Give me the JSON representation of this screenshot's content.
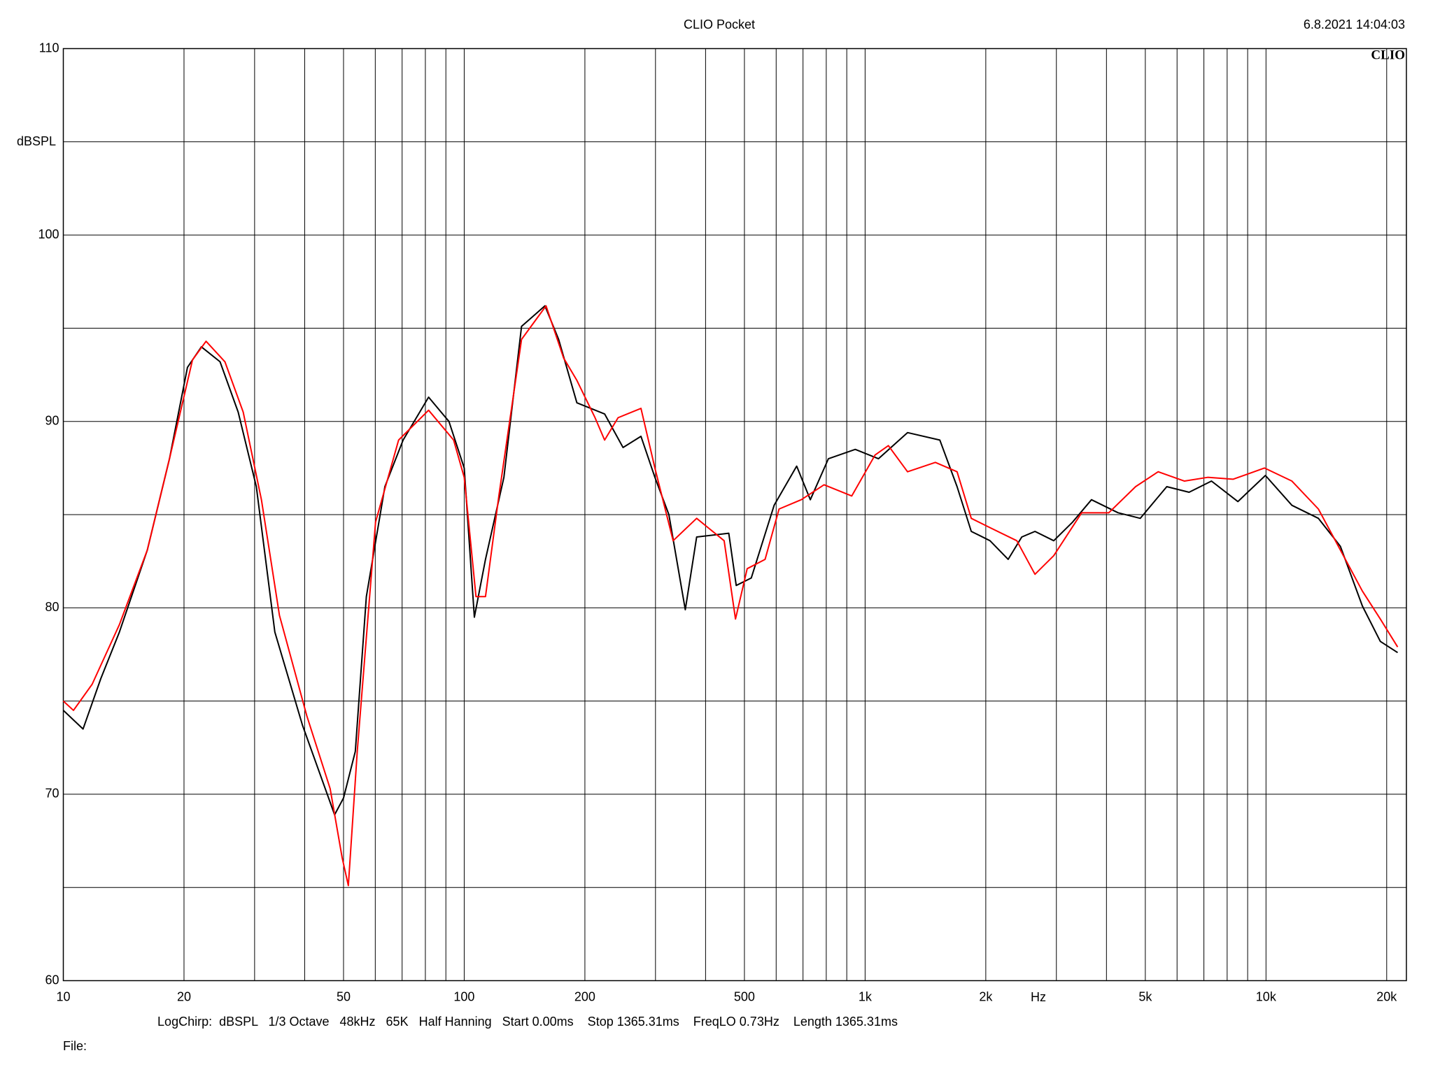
{
  "chart_data": {
    "type": "line",
    "title": "CLIO Pocket",
    "timestamp": "6.8.2021 14:04:03",
    "logo": "CLIO",
    "ylabel": "dBSPL",
    "xlabel": "Hz",
    "footer": "LogChirp:  dBSPL   1/3 Octave   48kHz   65K   Half Hanning   Start 0.00ms    Stop 1365.31ms    FreqLO 0.73Hz    Length 1365.31ms",
    "file_label": "File:",
    "xscale": "log",
    "grid": true,
    "xlim": [
      10,
      22400
    ],
    "ylim": [
      60,
      110
    ],
    "xticks": [
      10,
      20,
      50,
      100,
      200,
      500,
      {
        "value": 1000,
        "label": "1k"
      },
      {
        "value": 2000,
        "label": "2k"
      },
      {
        "value": 5000,
        "label": "5k"
      },
      {
        "value": 10000,
        "label": "10k"
      },
      {
        "value": 20000,
        "label": "20k"
      }
    ],
    "minor_xticks": [
      30,
      40,
      60,
      70,
      80,
      90,
      300,
      400,
      600,
      700,
      800,
      900,
      3000,
      4000,
      6000,
      7000,
      8000,
      9000
    ],
    "yticks": [
      60,
      70,
      80,
      90,
      100,
      110
    ],
    "minor_yticks": [
      65,
      75,
      85,
      95,
      105
    ],
    "series": [
      {
        "color": "#000000",
        "x": [
          10,
          11.2,
          12.4,
          13.8,
          16.2,
          18.4,
          20.4,
          22.1,
          24.6,
          27.3,
          30.3,
          33.7,
          39.5,
          47.5,
          50,
          53.5,
          57,
          63.4,
          70.4,
          81.5,
          91.6,
          100,
          106,
          113,
          125.6,
          139,
          159,
          172,
          191,
          224,
          249,
          276,
          299,
          324,
          356,
          380,
          457,
          477,
          520,
          593,
          675,
          730,
          810,
          945,
          1080,
          1276,
          1536,
          1696,
          1840,
          2049,
          2274,
          2459,
          2653,
          2955,
          3293,
          3670,
          4275,
          4856,
          5656,
          6429,
          7311,
          8508,
          9966,
          11605,
          13512,
          15330,
          17393,
          19283,
          21300
        ],
        "values": [
          74.5,
          73.5,
          76.2,
          78.7,
          83.1,
          88.0,
          92.9,
          94.0,
          93.2,
          90.5,
          86.5,
          78.7,
          73.7,
          68.9,
          69.8,
          72.3,
          80.6,
          86.5,
          89.0,
          91.3,
          90.0,
          87.5,
          79.5,
          82.6,
          87.0,
          95.1,
          96.2,
          94.4,
          91.0,
          90.4,
          88.6,
          89.2,
          87.0,
          85.0,
          79.9,
          83.8,
          84.0,
          81.2,
          81.6,
          85.5,
          87.6,
          85.8,
          88.0,
          88.5,
          88.0,
          89.4,
          89.0,
          86.5,
          84.1,
          83.6,
          82.6,
          83.8,
          84.1,
          83.6,
          84.6,
          85.8,
          85.1,
          84.8,
          86.5,
          86.2,
          86.8,
          85.7,
          87.1,
          85.5,
          84.8,
          83.3,
          80.1,
          78.2,
          77.6
        ]
      },
      {
        "color": "#ff0000",
        "x": [
          10,
          10.6,
          11.8,
          13.8,
          16.2,
          18.4,
          21.0,
          22.7,
          25.3,
          28.1,
          31.2,
          34.6,
          40.5,
          46.3,
          49.6,
          51.4,
          54.1,
          60.1,
          68.6,
          81.5,
          94.1,
          100,
          107,
          113,
          122,
          139,
          160,
          177,
          191,
          212,
          224,
          242,
          276,
          299,
          332,
          380,
          445,
          475,
          508,
          563,
          610,
          693,
          790,
          926,
          1059,
          1143,
          1276,
          1497,
          1696,
          1840,
          2049,
          2390,
          2653,
          2955,
          3469,
          4054,
          4728,
          5383,
          6261,
          7153,
          8283,
          9917,
          11605,
          13512,
          15330,
          17393,
          19283,
          21300
        ],
        "values": [
          75.0,
          74.5,
          75.9,
          79.1,
          83.1,
          88.0,
          93.3,
          94.3,
          93.2,
          90.5,
          85.8,
          79.6,
          74.2,
          70.3,
          66.6,
          65.1,
          72.3,
          84.6,
          89.0,
          90.6,
          89.0,
          87.0,
          80.6,
          80.6,
          86.0,
          94.4,
          96.2,
          93.4,
          92.2,
          90.2,
          89.0,
          90.2,
          90.7,
          87.5,
          83.6,
          84.8,
          83.6,
          79.4,
          82.1,
          82.6,
          85.3,
          85.8,
          86.6,
          86.0,
          88.2,
          88.7,
          87.3,
          87.8,
          87.3,
          84.8,
          84.3,
          83.6,
          81.8,
          82.8,
          85.1,
          85.1,
          86.5,
          87.3,
          86.8,
          87.0,
          86.9,
          87.5,
          86.8,
          85.3,
          83.1,
          80.9,
          79.4,
          77.9
        ]
      }
    ]
  }
}
